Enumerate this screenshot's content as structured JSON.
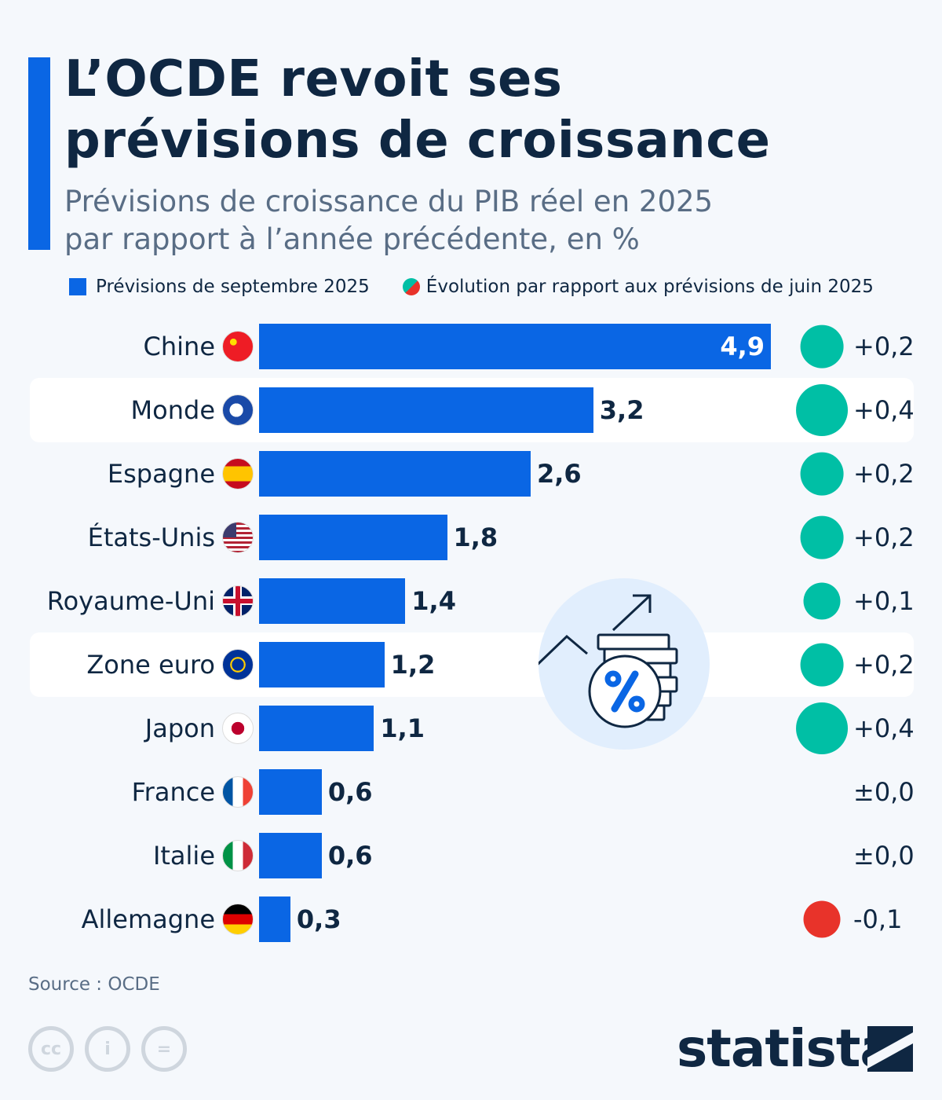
{
  "header": {
    "title_line1": "L’OCDE revoit ses",
    "title_line2": "prévisions de croissance",
    "subtitle_line1": "Prévisions de croissance du PIB réel en 2025",
    "subtitle_line2": "par rapport à l’année précédente, en %"
  },
  "colors": {
    "bar": "#0a66e4",
    "positive": "#00bfa5",
    "negative": "#e8332a",
    "text": "#0f2742"
  },
  "chart_data": {
    "type": "bar",
    "orientation": "horizontal",
    "legend": [
      "Prévisions de septembre 2025",
      "Évolution par rapport aux prévisions de juin 2025"
    ],
    "categories": [
      "Chine",
      "Monde",
      "Espagne",
      "États-Unis",
      "Royaume-Uni",
      "Zone euro",
      "Japon",
      "France",
      "Italie",
      "Allemagne"
    ],
    "values": [
      4.9,
      3.2,
      2.6,
      1.8,
      1.4,
      1.2,
      1.1,
      0.6,
      0.6,
      0.3
    ],
    "value_labels": [
      "4,9",
      "3,2",
      "2,6",
      "1,8",
      "1,4",
      "1,2",
      "1,1",
      "0,6",
      "0,6",
      "0,3"
    ],
    "change": [
      0.2,
      0.4,
      0.2,
      0.2,
      0.1,
      0.2,
      0.4,
      0,
      0,
      -0.1
    ],
    "change_labels": [
      "+0,2",
      "+0,4",
      "+0,2",
      "+0,2",
      "+0,1",
      "+0,2",
      "+0,4",
      "±0,0",
      "±0,0",
      "-0,1"
    ],
    "highlighted": [
      "Monde",
      "Zone euro"
    ],
    "xlim": [
      0,
      4.9
    ]
  },
  "flags": [
    "china-flag-icon",
    "globe-icon",
    "spain-flag-icon",
    "usa-flag-icon",
    "uk-flag-icon",
    "eu-flag-icon",
    "japan-flag-icon",
    "france-flag-icon",
    "italy-flag-icon",
    "germany-flag-icon"
  ],
  "footer": {
    "source": "Source : OCDE",
    "cc": "cc",
    "by": "i",
    "nd": "=",
    "brand": "statista"
  }
}
